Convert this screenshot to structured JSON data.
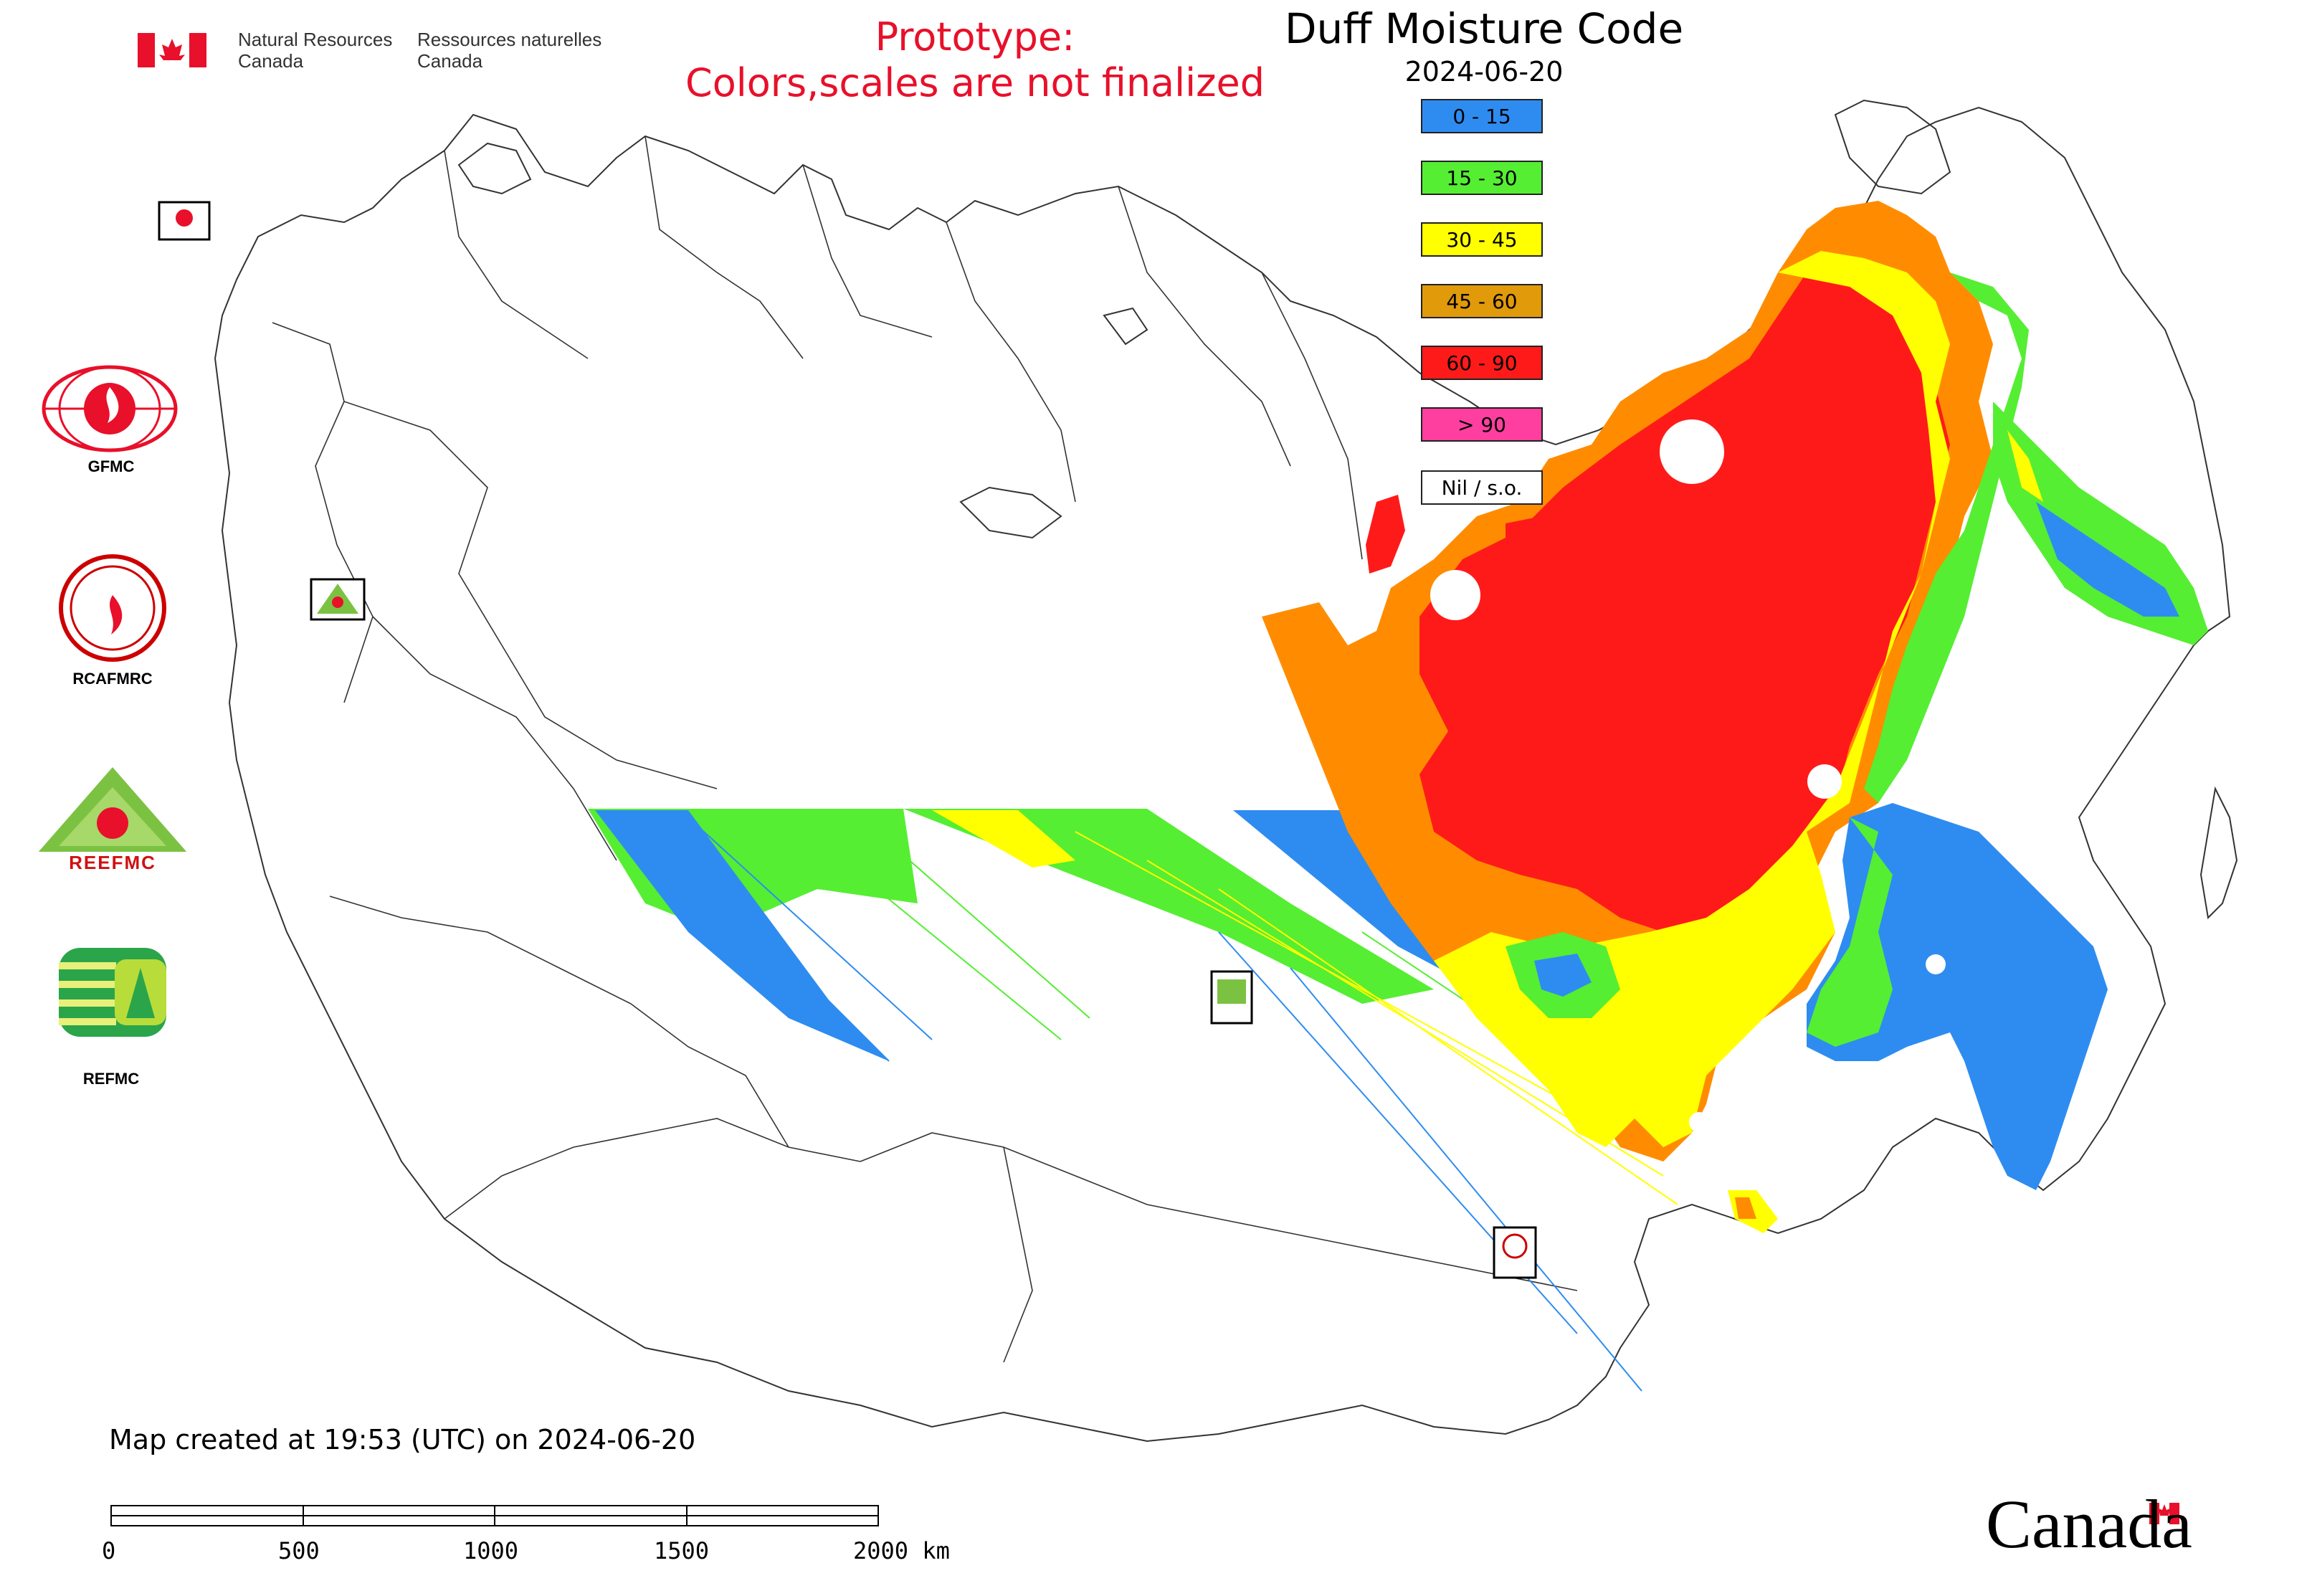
{
  "header": {
    "gov_en_line1": "Natural Resources",
    "gov_en_line2": "Canada",
    "gov_fr_line1": "Ressources naturelles",
    "gov_fr_line2": "Canada",
    "prototype_line1": "Prototype:",
    "prototype_line2": "Colors,scales are not finalized"
  },
  "map": {
    "title": "Duff Moisture Code",
    "date": "2024-06-20"
  },
  "legend": [
    {
      "label": "0 - 15",
      "color": "#2e8cf0"
    },
    {
      "label": "15 - 30",
      "color": "#55ee33"
    },
    {
      "label": "30 - 45",
      "color": "#ffff00"
    },
    {
      "label": "45 - 60",
      "color": "#e09a0a"
    },
    {
      "label": "60 - 90",
      "color": "#ff1a1a"
    },
    {
      "label": "> 90",
      "color": "#ff3fa0"
    },
    {
      "label": "Nil / s.o.",
      "color": "#ffffff"
    }
  ],
  "colors": {
    "blue": "#2e8cf0",
    "green": "#55ee33",
    "yellow": "#ffff00",
    "orange": "#ff8c00",
    "red": "#ff1a1a",
    "border": "#333333",
    "flag_red": "#e8102a"
  },
  "sidebar_orgs": [
    {
      "label": "GFMC"
    },
    {
      "label": "RCAFMRC"
    },
    {
      "label": "REEFMC"
    },
    {
      "label": "REFMC"
    }
  ],
  "footer": {
    "created_note": "Map created at 19:53 (UTC) on 2024-06-20",
    "canada_wordmark": "Canada"
  },
  "scale_bar": {
    "labels": [
      "0",
      "500",
      "1000",
      "1500",
      "2000 km"
    ]
  },
  "icons": {
    "flag": "canada-flag-icon",
    "gfmc": "gfmc-logo-icon",
    "rcafmrc": "rcafmrc-logo-icon",
    "reefmc": "reefmc-logo-icon",
    "refmc": "refmc-logo-icon"
  }
}
